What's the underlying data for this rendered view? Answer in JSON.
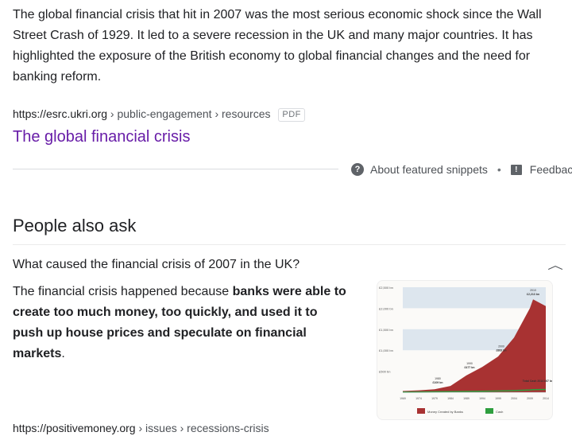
{
  "featured_snippet": {
    "text": "The global financial crisis that hit in 2007 was the most serious economic shock since the Wall Street Crash of 1929. It led to a severe recession in the UK and many major countries. It has highlighted the exposure of the British economy to global financial changes and the need for banking reform.",
    "cite_domain": "https://esrc.ukri.org",
    "cite_path": " › public-engagement › resources",
    "file_type": "PDF",
    "title": "The global financial crisis",
    "about_label": "About featured snippets",
    "separator": "•",
    "feedback_label": "Feedback"
  },
  "people_also_ask": {
    "heading": "People also ask",
    "question": "What caused the financial crisis of 2007 in the UK?",
    "answer_intro": "The financial crisis happened because ",
    "answer_bold": "banks were able to create too much money, too quickly, and used it to push up house prices and speculate on financial markets",
    "answer_end": ".",
    "cite_domain": "https://positivemoney.org",
    "cite_path": " › issues › recessions-crisis"
  },
  "icons": {
    "help": "question-circle-icon",
    "feedback": "feedback-icon",
    "collapse": "chevron-up-icon"
  },
  "colors": {
    "title_link": "#681da8",
    "chart_money": "#a83232",
    "chart_cash": "#2e9e3e"
  },
  "chart_data": {
    "type": "area",
    "x": [
      1969,
      1974,
      1979,
      1984,
      1989,
      1994,
      1999,
      2004,
      2009,
      2010,
      2014
    ],
    "series": [
      {
        "name": "Money Created by Banks",
        "values": [
          30,
          45,
          70,
          150,
          400,
          600,
          850,
          1300,
          2000,
          2213,
          2050
        ]
      },
      {
        "name": "Cash",
        "values": [
          5,
          8,
          12,
          15,
          18,
          25,
          30,
          40,
          55,
          60,
          67
        ]
      }
    ],
    "y_tick_labels": [
      "£2,500 bn",
      "£2,000 bn",
      "£1,500 bn",
      "£1,000 bn",
      "£500 bn"
    ],
    "x_tick_labels": [
      "1969",
      "1974",
      "1979",
      "1984",
      "1989",
      "1994",
      "1999",
      "2004",
      "2009",
      "2014"
    ],
    "ylim": [
      0,
      2500
    ],
    "annotations": [
      {
        "year": "1980",
        "value": "£109 bn"
      },
      {
        "year": "1990",
        "value": "£477 bn"
      },
      {
        "year": "2000",
        "value": "£883 bn"
      },
      {
        "year": "2010",
        "value": "£2,213 bn"
      },
      {
        "year": "",
        "value": "Total Cash 2014 £67 bn"
      }
    ],
    "legend": [
      "Money Created by Banks",
      "Cash"
    ]
  }
}
